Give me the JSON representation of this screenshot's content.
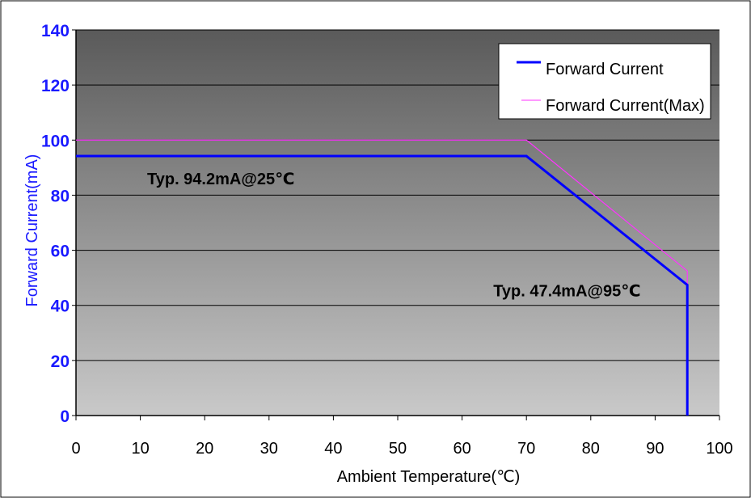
{
  "chart_data": {
    "type": "line",
    "xlabel": "Ambient Temperature(℃)",
    "ylabel": "Forward Current(mA)",
    "xlim": [
      0,
      100
    ],
    "ylim": [
      0,
      140
    ],
    "xticks": [
      "0",
      "10",
      "20",
      "30",
      "40",
      "50",
      "60",
      "70",
      "80",
      "90",
      "100"
    ],
    "yticks": [
      "0",
      "20",
      "40",
      "60",
      "80",
      "100",
      "120",
      "140"
    ],
    "grid": "horizontal",
    "legend_position": "top-right",
    "series": [
      {
        "name": "Forward Current",
        "color": "#0000ff",
        "points": [
          [
            0,
            94.2
          ],
          [
            70,
            94.2
          ],
          [
            95,
            47.4
          ],
          [
            95,
            0
          ]
        ]
      },
      {
        "name": "Forward Current(Max)",
        "color": "#ff33ff",
        "points": [
          [
            0,
            100
          ],
          [
            70,
            100
          ],
          [
            95,
            52.5
          ],
          [
            95,
            0
          ]
        ]
      }
    ],
    "annotations": [
      {
        "text": "Typ. 94.2mA@25℃",
        "x": 25,
        "y": 94.2
      },
      {
        "text": "Typ. 47.4mA@95℃",
        "x": 95,
        "y": 47.4
      }
    ]
  }
}
